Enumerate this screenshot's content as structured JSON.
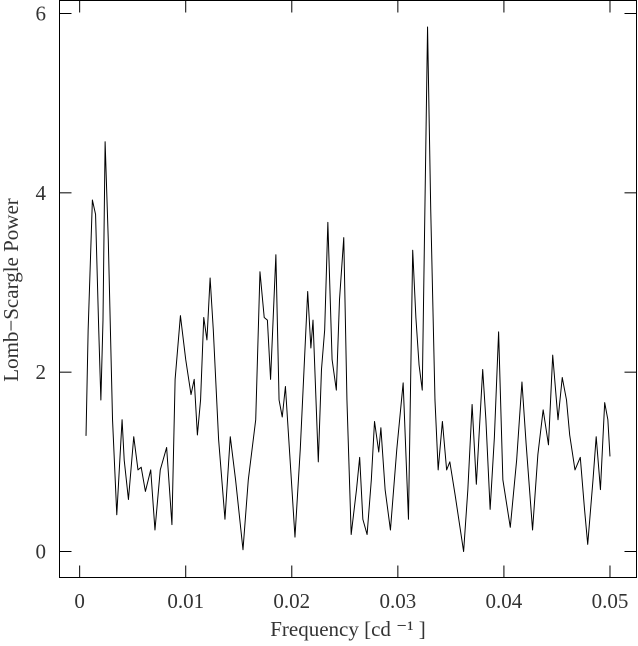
{
  "chart_data": {
    "type": "line",
    "xlabel": "Frequency [cd ⁻¹ ]",
    "ylabel": "Lomb−Scargle Power",
    "x": [
      0.0006,
      0.0008,
      0.0012,
      0.0015,
      0.0018,
      0.002,
      0.0022,
      0.0024,
      0.0027,
      0.0031,
      0.0035,
      0.004,
      0.0042,
      0.0046,
      0.0051,
      0.0055,
      0.0058,
      0.0062,
      0.0067,
      0.0071,
      0.0076,
      0.0082,
      0.0087,
      0.009,
      0.0095,
      0.01,
      0.0105,
      0.0108,
      0.0111,
      0.0114,
      0.0117,
      0.012,
      0.0123,
      0.0126,
      0.0131,
      0.0137,
      0.0142,
      0.0147,
      0.0154,
      0.0159,
      0.0166,
      0.017,
      0.0174,
      0.0177,
      0.018,
      0.0185,
      0.0188,
      0.0191,
      0.0194,
      0.0199,
      0.0203,
      0.0208,
      0.0215,
      0.0218,
      0.022,
      0.0225,
      0.0228,
      0.0231,
      0.0234,
      0.0238,
      0.0242,
      0.0245,
      0.0249,
      0.0252,
      0.0256,
      0.0261,
      0.0264,
      0.0267,
      0.0271,
      0.0275,
      0.0278,
      0.0282,
      0.0284,
      0.0288,
      0.0293,
      0.0299,
      0.0305,
      0.031,
      0.0314,
      0.0317,
      0.032,
      0.0323,
      0.0328,
      0.0331,
      0.0335,
      0.0338,
      0.0342,
      0.0346,
      0.0349,
      0.0354,
      0.0362,
      0.0366,
      0.037,
      0.0374,
      0.038,
      0.0383,
      0.0387,
      0.0391,
      0.0395,
      0.0399,
      0.0406,
      0.0412,
      0.0417,
      0.0421,
      0.0427,
      0.0432,
      0.0437,
      0.0442,
      0.0446,
      0.0451,
      0.0455,
      0.0459,
      0.0462,
      0.0467,
      0.0472,
      0.0476,
      0.0479,
      0.0484,
      0.0487,
      0.0491,
      0.0495,
      0.0498,
      0.05
    ],
    "series": [
      {
        "color": "#000000",
        "values": [
          1.29,
          2.47,
          3.92,
          3.76,
          2.47,
          1.69,
          2.58,
          4.57,
          3.47,
          1.47,
          0.41,
          1.47,
          1.02,
          0.58,
          1.28,
          0.91,
          0.94,
          0.67,
          0.91,
          0.24,
          0.91,
          1.16,
          0.3,
          1.92,
          2.63,
          2.14,
          1.75,
          1.92,
          1.3,
          1.69,
          2.61,
          2.36,
          3.05,
          2.47,
          1.25,
          0.36,
          1.28,
          0.8,
          0.02,
          0.8,
          1.47,
          3.12,
          2.61,
          2.58,
          1.92,
          3.31,
          1.69,
          1.5,
          1.84,
          0.91,
          0.16,
          1.14,
          2.9,
          2.27,
          2.58,
          1.0,
          2.03,
          2.47,
          3.67,
          2.14,
          1.8,
          2.81,
          3.5,
          1.69,
          0.19,
          0.69,
          1.05,
          0.36,
          0.19,
          0.8,
          1.45,
          1.11,
          1.38,
          0.69,
          0.24,
          1.14,
          1.88,
          0.36,
          3.36,
          2.61,
          2.08,
          1.8,
          5.85,
          3.81,
          1.69,
          0.91,
          1.45,
          0.91,
          1.0,
          0.63,
          0.0,
          0.69,
          1.64,
          0.75,
          2.03,
          1.47,
          0.47,
          1.27,
          2.45,
          0.8,
          0.27,
          1.02,
          1.89,
          1.19,
          0.24,
          1.08,
          1.58,
          1.19,
          2.19,
          1.47,
          1.94,
          1.69,
          1.3,
          0.91,
          1.05,
          0.47,
          0.08,
          0.8,
          1.28,
          0.69,
          1.66,
          1.47,
          1.06
        ]
      }
    ],
    "xlim": [
      -0.0019,
      0.0525
    ],
    "ylim": [
      -0.29,
      6.145
    ],
    "xticks": [
      0,
      0.01,
      0.02,
      0.03,
      0.04,
      0.05
    ],
    "yticks": [
      0,
      2,
      4,
      6
    ]
  }
}
